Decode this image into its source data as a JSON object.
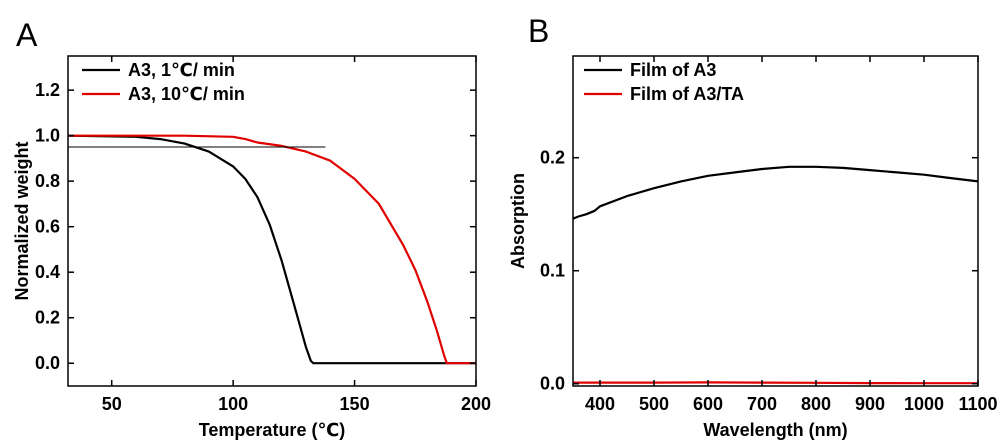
{
  "chart_data": [
    {
      "type": "line",
      "panel_label": "A",
      "xlabel": "Temperature (℃)",
      "ylabel": "Normalized weight",
      "xlim": [
        32,
        200
      ],
      "ylim": [
        -0.1,
        1.35
      ],
      "xticks": [
        50,
        100,
        150,
        200
      ],
      "yticks": [
        0.0,
        0.2,
        0.4,
        0.6,
        0.8,
        1.0,
        1.2
      ],
      "xtick_labels": [
        "50",
        "100",
        "150",
        "200"
      ],
      "ytick_labels": [
        "0.0",
        "0.2",
        "0.4",
        "0.6",
        "0.8",
        "1.0",
        "1.2"
      ],
      "legend_position": "top-left",
      "grid": false,
      "series": [
        {
          "name": "A3, 1℃/ min",
          "color": "#000000",
          "x": [
            32,
            60,
            70,
            80,
            90,
            100,
            105,
            110,
            115,
            120,
            125,
            130,
            132,
            133,
            140,
            160,
            180,
            200
          ],
          "y": [
            1.0,
            0.995,
            0.985,
            0.965,
            0.93,
            0.865,
            0.81,
            0.73,
            0.61,
            0.45,
            0.26,
            0.07,
            0.01,
            0.0,
            0.0,
            0.0,
            0.0,
            0.0
          ]
        },
        {
          "name": "A3, 10℃/ min",
          "color": "#e00000",
          "x": [
            32,
            80,
            100,
            105,
            110,
            120,
            130,
            140,
            150,
            160,
            170,
            175,
            180,
            184,
            187,
            188,
            200
          ],
          "y": [
            1.0,
            1.0,
            0.995,
            0.985,
            0.97,
            0.955,
            0.93,
            0.89,
            0.81,
            0.7,
            0.52,
            0.41,
            0.27,
            0.14,
            0.03,
            0.0,
            0.0
          ]
        },
        {
          "name": "",
          "color": "#000000",
          "x": [
            32,
            138
          ],
          "y": [
            0.95,
            0.95
          ]
        }
      ]
    },
    {
      "type": "line",
      "panel_label": "B",
      "xlabel": "Wavelength (nm)",
      "ylabel": "Absorption",
      "xlim": [
        350,
        1100
      ],
      "ylim": [
        -0.002,
        0.29
      ],
      "xticks": [
        400,
        500,
        600,
        700,
        800,
        900,
        1000,
        1100
      ],
      "yticks": [
        0.0,
        0.1,
        0.2
      ],
      "xtick_labels": [
        "400",
        "500",
        "600",
        "700",
        "800",
        "900",
        "1000",
        "1100"
      ],
      "ytick_labels": [
        "0.0",
        "0.1",
        "0.2"
      ],
      "legend_position": "top-left",
      "grid": false,
      "series": [
        {
          "name": "Film of A3",
          "color": "#000000",
          "x": [
            350,
            360,
            375,
            390,
            400,
            450,
            500,
            550,
            600,
            650,
            700,
            750,
            800,
            850,
            900,
            950,
            1000,
            1050,
            1100
          ],
          "y": [
            0.146,
            0.148,
            0.15,
            0.153,
            0.157,
            0.166,
            0.173,
            0.179,
            0.184,
            0.187,
            0.19,
            0.192,
            0.192,
            0.191,
            0.189,
            0.187,
            0.185,
            0.182,
            0.179
          ]
        },
        {
          "name": "Film of A3/TA",
          "color": "#e00000",
          "x": [
            350,
            400,
            500,
            600,
            700,
            800,
            900,
            1000,
            1100
          ],
          "y": [
            0.001,
            0.001,
            0.001,
            0.0012,
            0.001,
            0.0008,
            0.0006,
            0.0005,
            0.0005
          ]
        }
      ]
    }
  ]
}
